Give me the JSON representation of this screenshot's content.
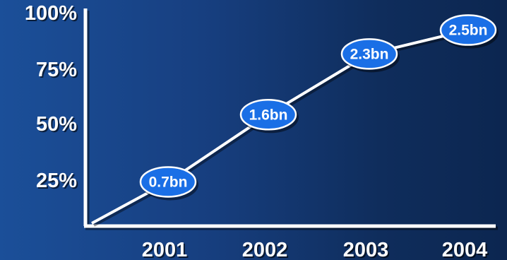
{
  "chart_data": {
    "type": "line",
    "categories": [
      "2001",
      "2002",
      "2003",
      "2004"
    ],
    "x_start": "",
    "series": [
      {
        "values": [
          22,
          53,
          81,
          92
        ],
        "labels": [
          "0.7bn",
          "1.6bn",
          "2.3bn",
          "2.5bn"
        ]
      }
    ],
    "start_value": 0,
    "yticks": [
      "25%",
      "50%",
      "75%",
      "100%"
    ],
    "ylim": [
      0,
      100
    ],
    "grid": false,
    "legend": "none",
    "title": "",
    "xlabel": "",
    "ylabel": "",
    "colors": {
      "axis": "#ffffff",
      "line": "#ffffff",
      "marker_fill": "#1a6fe6",
      "marker_stroke": "#ffffff",
      "text": "#ffffff",
      "shadow": "#000000"
    }
  }
}
